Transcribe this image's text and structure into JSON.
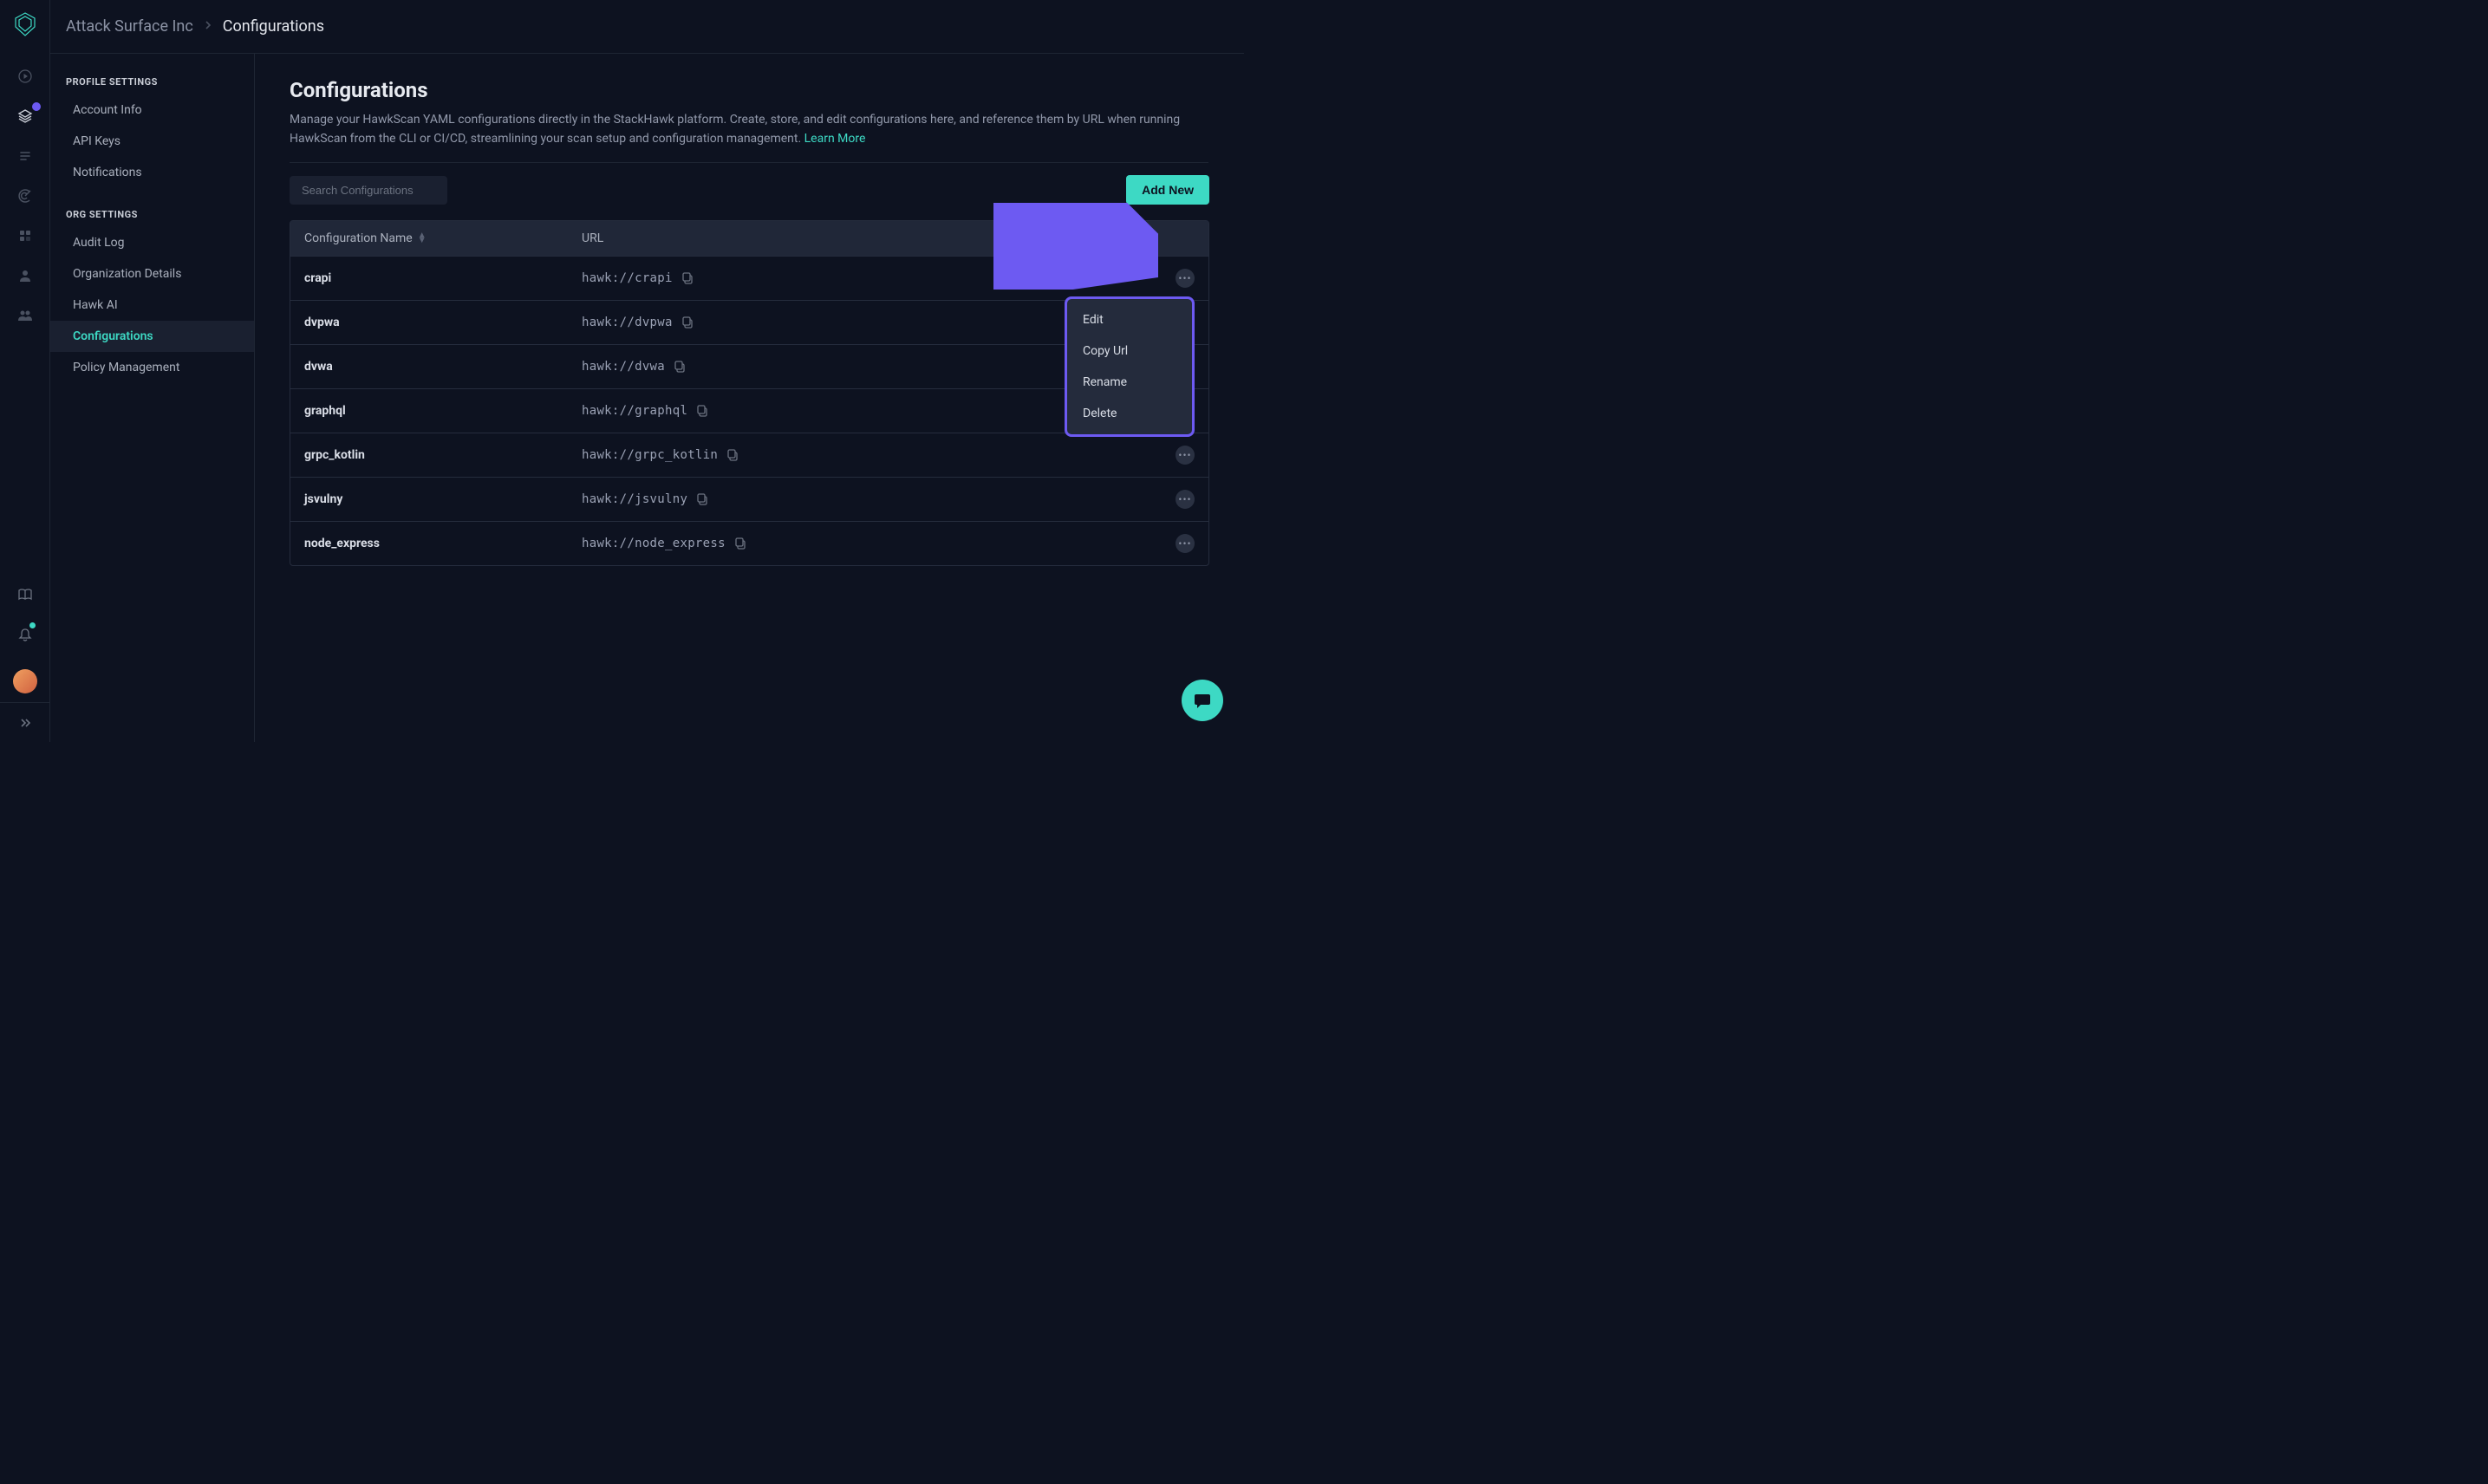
{
  "breadcrumb": {
    "org": "Attack Surface Inc",
    "page": "Configurations"
  },
  "sidebar": {
    "profile_header": "PROFILE SETTINGS",
    "org_header": "ORG SETTINGS",
    "profile_items": [
      {
        "label": "Account Info"
      },
      {
        "label": "API Keys"
      },
      {
        "label": "Notifications"
      }
    ],
    "org_items": [
      {
        "label": "Audit Log"
      },
      {
        "label": "Organization Details"
      },
      {
        "label": "Hawk AI"
      },
      {
        "label": "Configurations",
        "active": true
      },
      {
        "label": "Policy Management"
      }
    ]
  },
  "page": {
    "title": "Configurations",
    "description": "Manage your HawkScan YAML configurations directly in the StackHawk platform. Create, store, and edit configurations here, and reference them by URL when running HawkScan from the CLI or CI/CD, streamlining your scan setup and configuration management. ",
    "learn_more": "Learn More"
  },
  "toolbar": {
    "search_placeholder": "Search Configurations",
    "add_label": "Add New"
  },
  "table": {
    "col_name": "Configuration Name",
    "col_url": "URL",
    "rows": [
      {
        "name": "crapi",
        "url": "hawk://crapi",
        "menu_open": true
      },
      {
        "name": "dvpwa",
        "url": "hawk://dvpwa"
      },
      {
        "name": "dvwa",
        "url": "hawk://dvwa"
      },
      {
        "name": "graphql",
        "url": "hawk://graphql"
      },
      {
        "name": "grpc_kotlin",
        "url": "hawk://grpc_kotlin"
      },
      {
        "name": "jsvulny",
        "url": "hawk://jsvulny"
      },
      {
        "name": "node_express",
        "url": "hawk://node_express"
      }
    ]
  },
  "context_menu": {
    "items": [
      {
        "label": "Edit"
      },
      {
        "label": "Copy Url"
      },
      {
        "label": "Rename"
      },
      {
        "label": "Delete"
      }
    ]
  },
  "colors": {
    "accent": "#3dd9c4",
    "highlight": "#6d5af2",
    "bg": "#0d1220",
    "panel": "#1a2030",
    "border": "#1e2533"
  }
}
